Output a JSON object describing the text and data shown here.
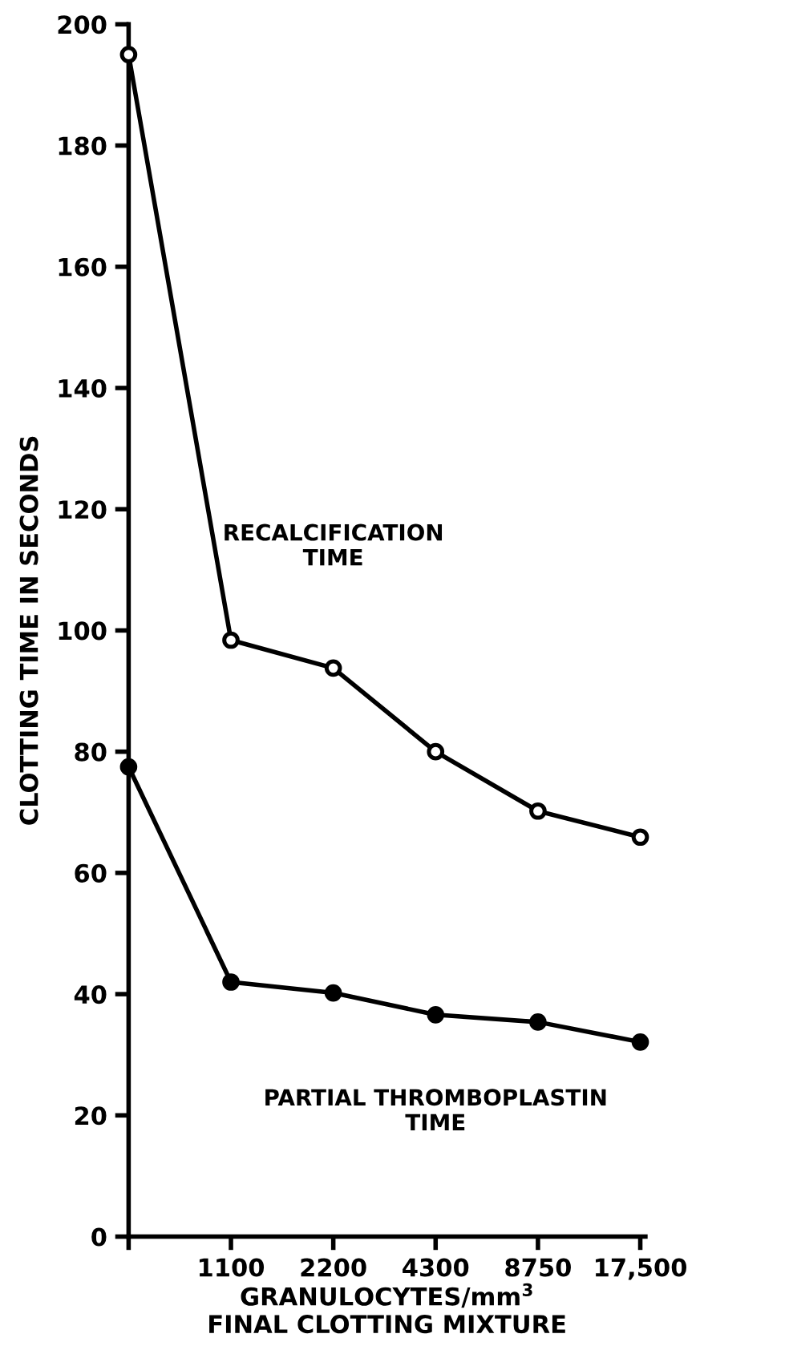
{
  "chart_data": {
    "type": "line",
    "xlabel": "GRANULOCYTES/mm$^{3}$\nFINAL CLOTTING MIXTURE",
    "ylabel": "CLOTTING TIME IN SECONDS",
    "categories": [
      null,
      "1100",
      "2200",
      "4300",
      "8750",
      "17,500"
    ],
    "series": [
      {
        "name": "RECALCIFICATION\nTIME",
        "color": "#000000",
        "marker": "circle",
        "values": [
          195,
          98.4,
          93.8,
          80,
          70.2,
          65.9
        ]
      },
      {
        "name": "PARTIAL THROMBOPLASTIN\nTIME",
        "color": "#000000",
        "marker": "circle",
        "values": [
          77.5,
          42,
          40.2,
          36.6,
          35.4,
          32.1
        ]
      }
    ],
    "ylim": [
      0,
      200
    ],
    "yticks": [
      0,
      20,
      40,
      60,
      80,
      100,
      120,
      140,
      160,
      180,
      200
    ],
    "grid": false,
    "legend": false,
    "line_style": "solid"
  }
}
